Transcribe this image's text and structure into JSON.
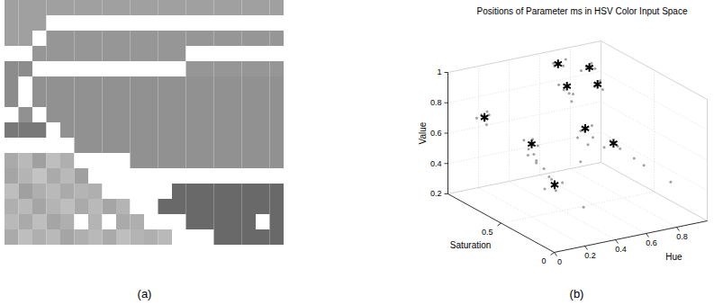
{
  "chart_data": [
    {
      "type": "image",
      "label": "(a)",
      "gray_levels": [
        [
          160,
          160,
          160,
          160,
          160,
          160,
          160,
          160,
          160,
          160,
          160,
          160,
          160,
          160,
          160,
          160,
          160,
          160,
          160,
          160
        ],
        [
          160,
          160,
          160,
          255,
          255,
          255,
          255,
          255,
          255,
          255,
          255,
          255,
          255,
          255,
          255,
          255,
          255,
          255,
          255,
          255
        ],
        [
          160,
          160,
          255,
          150,
          150,
          150,
          150,
          150,
          150,
          150,
          150,
          150,
          150,
          150,
          150,
          150,
          150,
          150,
          150,
          150
        ],
        [
          255,
          255,
          150,
          150,
          150,
          150,
          150,
          150,
          150,
          150,
          150,
          150,
          150,
          255,
          255,
          255,
          255,
          255,
          255,
          255
        ],
        [
          140,
          140,
          255,
          255,
          255,
          255,
          255,
          255,
          255,
          255,
          255,
          255,
          255,
          150,
          150,
          150,
          150,
          150,
          150,
          150
        ],
        [
          140,
          255,
          145,
          145,
          145,
          145,
          145,
          145,
          145,
          145,
          145,
          145,
          145,
          145,
          145,
          145,
          145,
          145,
          145,
          145
        ],
        [
          140,
          255,
          145,
          145,
          145,
          145,
          145,
          145,
          145,
          145,
          145,
          145,
          145,
          145,
          145,
          145,
          145,
          145,
          145,
          145
        ],
        [
          255,
          145,
          255,
          145,
          145,
          145,
          145,
          145,
          145,
          145,
          145,
          145,
          145,
          145,
          145,
          145,
          145,
          145,
          145,
          145
        ],
        [
          120,
          120,
          120,
          255,
          145,
          145,
          145,
          145,
          145,
          145,
          145,
          145,
          145,
          145,
          145,
          145,
          145,
          145,
          145,
          145
        ],
        [
          255,
          255,
          255,
          255,
          255,
          145,
          145,
          145,
          145,
          145,
          145,
          145,
          145,
          145,
          145,
          145,
          145,
          145,
          145,
          145
        ],
        [
          170,
          185,
          160,
          190,
          175,
          255,
          255,
          255,
          255,
          145,
          145,
          145,
          145,
          145,
          145,
          145,
          145,
          145,
          145,
          145
        ],
        [
          165,
          180,
          195,
          170,
          185,
          160,
          255,
          255,
          255,
          255,
          255,
          255,
          255,
          255,
          255,
          255,
          255,
          255,
          255,
          255
        ],
        [
          190,
          160,
          175,
          185,
          170,
          180,
          175,
          255,
          255,
          255,
          255,
          255,
          105,
          105,
          105,
          105,
          105,
          105,
          105,
          105
        ],
        [
          175,
          185,
          165,
          180,
          190,
          170,
          185,
          165,
          180,
          255,
          255,
          105,
          105,
          105,
          105,
          105,
          105,
          105,
          105,
          105
        ],
        [
          185,
          170,
          190,
          165,
          175,
          255,
          180,
          255,
          170,
          175,
          255,
          255,
          255,
          105,
          105,
          105,
          105,
          105,
          255,
          105
        ],
        [
          170,
          190,
          175,
          185,
          165,
          175,
          185,
          170,
          190,
          180,
          175,
          185,
          255,
          255,
          255,
          105,
          105,
          105,
          105,
          105
        ]
      ]
    },
    {
      "type": "scatter3d",
      "label": "(b)",
      "title": "Positions of Parameter ms in HSV Color Input Space",
      "xlabel": "Hue",
      "ylabel": "Saturation",
      "zlabel": "Value",
      "xlim": [
        0,
        1
      ],
      "xticks": [
        0,
        0.2,
        0.4,
        0.6,
        0.8
      ],
      "ylim": [
        0,
        1
      ],
      "yticks": [
        0,
        0.5
      ],
      "zlim": [
        0.2,
        1
      ],
      "zticks": [
        0.2,
        0.4,
        0.6,
        0.8,
        1
      ],
      "grid": true,
      "series": [
        {
          "color": "#a0a0a0",
          "marker": "dot",
          "x": [
            0.08,
            0.12,
            0.1,
            0.13,
            0.07,
            0.11,
            0.18,
            0.22,
            0.2,
            0.24,
            0.17,
            0.21,
            0.23,
            0.19,
            0.3,
            0.33,
            0.36,
            0.28,
            0.38,
            0.32,
            0.52,
            0.56,
            0.58,
            0.5,
            0.54,
            0.6,
            0.68,
            0.72,
            0.75,
            0.66,
            0.8,
            0.85,
            0.48,
            0.52,
            0.5,
            0.46,
            0.54,
            0.62,
            0.67,
            0.64,
            0.7,
            0.8,
            0.85,
            0.78,
            0.84,
            0.68,
            0.73,
            0.72,
            0.4,
            0.9,
            0.6,
            0.45,
            0.15
          ],
          "y": [
            0.8,
            0.82,
            0.78,
            0.8,
            0.83,
            0.79,
            0.5,
            0.52,
            0.48,
            0.5,
            0.53,
            0.47,
            0.5,
            0.52,
            0.48,
            0.5,
            0.52,
            0.5,
            0.47,
            0.55,
            0.5,
            0.52,
            0.48,
            0.5,
            0.46,
            0.5,
            0.45,
            0.44,
            0.46,
            0.48,
            0.4,
            0.38,
            0.6,
            0.62,
            0.58,
            0.62,
            0.6,
            0.9,
            0.88,
            0.92,
            0.9,
            0.85,
            0.84,
            0.87,
            0.86,
            0.6,
            0.62,
            0.58,
            0.3,
            0.2,
            0.7,
            0.4,
            0.2
          ],
          "z": [
            0.78,
            0.74,
            0.72,
            0.77,
            0.75,
            0.8,
            0.65,
            0.7,
            0.62,
            0.66,
            0.7,
            0.58,
            0.55,
            0.6,
            0.45,
            0.42,
            0.36,
            0.5,
            0.4,
            0.34,
            0.7,
            0.68,
            0.73,
            0.66,
            0.62,
            0.64,
            0.62,
            0.58,
            0.55,
            0.57,
            0.5,
            0.45,
            0.94,
            0.95,
            0.92,
            0.97,
            0.9,
            0.97,
            0.95,
            0.94,
            0.98,
            0.93,
            0.91,
            0.9,
            0.94,
            0.92,
            0.94,
            0.9,
            0.3,
            0.4,
            0.8,
            0.55,
            0.5
          ]
        },
        {
          "color": "#000000",
          "marker": "asterisk",
          "x": [
            0.1,
            0.2,
            0.35,
            0.55,
            0.7,
            0.5,
            0.65,
            0.82,
            0.7
          ],
          "y": [
            0.8,
            0.5,
            0.5,
            0.5,
            0.45,
            0.6,
            0.9,
            0.85,
            0.6
          ],
          "z": [
            0.76,
            0.68,
            0.38,
            0.71,
            0.6,
            0.96,
            0.96,
            0.92,
            0.93
          ]
        }
      ]
    }
  ]
}
